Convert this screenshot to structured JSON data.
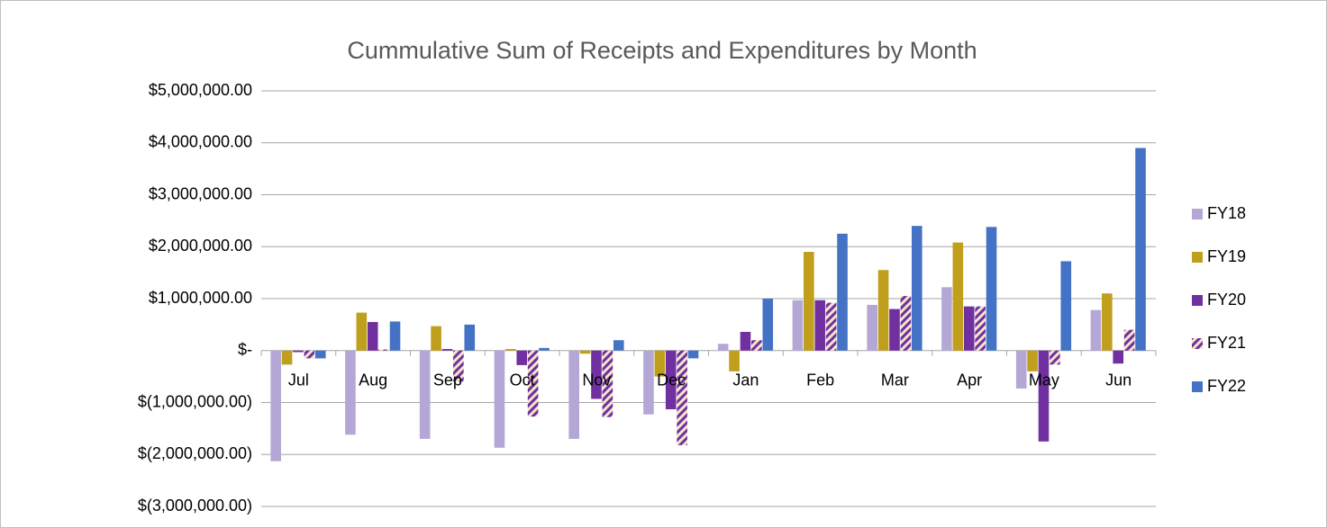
{
  "chart_data": {
    "type": "bar",
    "title": "Cummulative Sum of Receipts and Expenditures by Month",
    "categories": [
      "Jul",
      "Aug",
      "Sep",
      "Oct",
      "Nov",
      "Dec",
      "Jan",
      "Feb",
      "Mar",
      "Apr",
      "May",
      "Jun"
    ],
    "series": [
      {
        "name": "FY18",
        "color": "#b4a7d6",
        "values": [
          -2130000,
          -1620000,
          -1700000,
          -1870000,
          -1700000,
          -1230000,
          130000,
          970000,
          880000,
          1220000,
          -730000,
          780000
        ]
      },
      {
        "name": "FY19",
        "color": "#bf9f1c",
        "values": [
          -270000,
          730000,
          470000,
          30000,
          -60000,
          -500000,
          -400000,
          1900000,
          1550000,
          2080000,
          -400000,
          1100000
        ]
      },
      {
        "name": "FY20",
        "color": "#7030a0",
        "values": [
          -30000,
          550000,
          30000,
          -280000,
          -930000,
          -1130000,
          360000,
          970000,
          800000,
          850000,
          -1750000,
          -250000
        ]
      },
      {
        "name": "FY21",
        "color": "#7030a0",
        "pattern": "diagonal",
        "values": [
          -150000,
          20000,
          -600000,
          -1270000,
          -1280000,
          -1820000,
          200000,
          920000,
          1050000,
          850000,
          -270000,
          400000
        ]
      },
      {
        "name": "FY22",
        "color": "#4472c4",
        "values": [
          -150000,
          560000,
          500000,
          50000,
          200000,
          -150000,
          1000000,
          2250000,
          2400000,
          2380000,
          1720000,
          3900000
        ]
      }
    ],
    "ylim": [
      -3000000,
      5000000
    ],
    "yticks": [
      {
        "value": -3000000,
        "label": "$(3,000,000.00)"
      },
      {
        "value": -2000000,
        "label": "$(2,000,000.00)"
      },
      {
        "value": -1000000,
        "label": "$(1,000,000.00)"
      },
      {
        "value": 0,
        "label": "$-"
      },
      {
        "value": 1000000,
        "label": "$1,000,000.00"
      },
      {
        "value": 2000000,
        "label": "$2,000,000.00"
      },
      {
        "value": 3000000,
        "label": "$3,000,000.00"
      },
      {
        "value": 4000000,
        "label": "$4,000,000.00"
      },
      {
        "value": 5000000,
        "label": "$5,000,000.00"
      }
    ],
    "grid": true,
    "legend": "right"
  }
}
